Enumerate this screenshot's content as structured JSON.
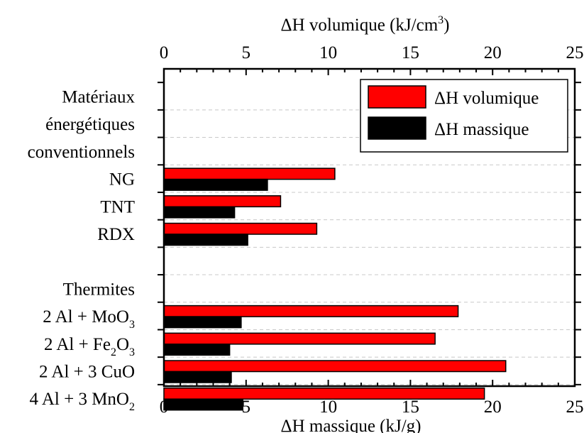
{
  "chart_data": {
    "type": "bar",
    "orientation": "horizontal",
    "xlabel_bottom": "ΔH massique (kJ/g)",
    "xlabel_top": {
      "text": "ΔH volumique (kJ/cm",
      "sup": "3",
      "suffix": ")"
    },
    "xlim": [
      0,
      25
    ],
    "xticks": [
      0,
      5,
      10,
      15,
      20,
      25
    ],
    "grid": "horizontal dashed",
    "legend_position": "top-right",
    "categories": [
      {
        "parts": [
          {
            "t": "Matériaux"
          }
        ]
      },
      {
        "parts": [
          {
            "t": "énergétiques"
          }
        ]
      },
      {
        "parts": [
          {
            "t": "conventionnels"
          }
        ]
      },
      {
        "parts": [
          {
            "t": "NG"
          }
        ]
      },
      {
        "parts": [
          {
            "t": "TNT"
          }
        ]
      },
      {
        "parts": [
          {
            "t": "RDX"
          }
        ]
      },
      {
        "parts": [
          {
            "t": ""
          }
        ]
      },
      {
        "parts": [
          {
            "t": "Thermites"
          }
        ]
      },
      {
        "parts": [
          {
            "t": "2 Al + MoO"
          },
          {
            "t": "3",
            "sub": true
          }
        ]
      },
      {
        "parts": [
          {
            "t": "2 Al + Fe"
          },
          {
            "t": "2",
            "sub": true
          },
          {
            "t": "O"
          },
          {
            "t": "3",
            "sub": true
          }
        ]
      },
      {
        "parts": [
          {
            "t": "2 Al + 3 CuO"
          }
        ]
      },
      {
        "parts": [
          {
            "t": "4 Al + 3 MnO"
          },
          {
            "t": "2",
            "sub": true
          }
        ]
      }
    ],
    "series": [
      {
        "name": "ΔH volumique",
        "color": "#ff0000",
        "values": [
          null,
          null,
          null,
          10.4,
          7.1,
          9.3,
          null,
          null,
          17.9,
          16.5,
          20.8,
          19.5
        ]
      },
      {
        "name": "ΔH massique",
        "color": "#000000",
        "values": [
          null,
          null,
          null,
          6.3,
          4.3,
          5.1,
          null,
          null,
          4.7,
          4.0,
          4.1,
          4.8
        ]
      }
    ]
  }
}
